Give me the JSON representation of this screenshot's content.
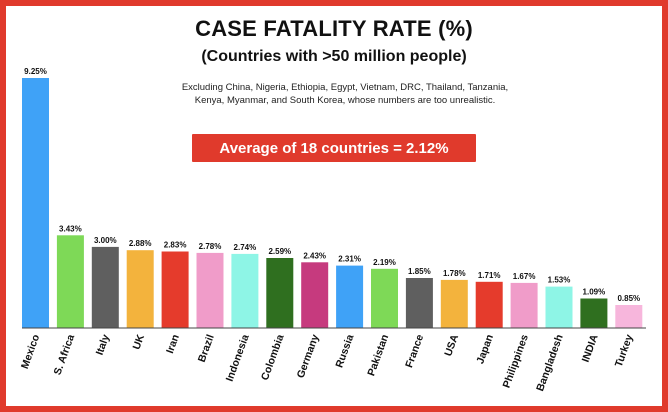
{
  "header": {
    "title": "CASE FATALITY RATE (%)",
    "subtitle": "(Countries with >50 million people)",
    "note": "Excluding China, Nigeria, Ethiopia, Egypt, Vietnam, DRC, Thailand, Tanzania, Kenya, Myanmar, and South Korea, whose numbers are too unrealistic.",
    "average_banner": "Average of 18 countries = 2.12%"
  },
  "colors": {
    "frame": "#e03a2c",
    "banner": "#e03a2c"
  },
  "chart_data": {
    "type": "bar",
    "title": "CASE FATALITY RATE (%)",
    "subtitle": "(Countries with >50 million people)",
    "xlabel": "",
    "ylabel": "",
    "ylim": [
      0,
      9.25
    ],
    "grid": false,
    "categories": [
      "Mexico",
      "S. Africa",
      "Italy",
      "UK",
      "Iran",
      "Brazil",
      "Indonesia",
      "Colombia",
      "Germany",
      "Russia",
      "Pakistan",
      "France",
      "USA",
      "Japan",
      "Philippines",
      "Bangladesh",
      "INDIA",
      "Turkey"
    ],
    "values": [
      9.25,
      3.43,
      3.0,
      2.88,
      2.83,
      2.78,
      2.74,
      2.59,
      2.43,
      2.31,
      2.19,
      1.85,
      1.78,
      1.71,
      1.67,
      1.53,
      1.09,
      0.85
    ],
    "value_labels": [
      "9.25%",
      "3.43%",
      "3.00%",
      "2.88%",
      "2.83%",
      "2.78%",
      "2.74%",
      "2.59%",
      "2.43%",
      "2.31%",
      "2.19%",
      "1.85%",
      "1.78%",
      "1.71%",
      "1.67%",
      "1.53%",
      "1.09%",
      "0.85%"
    ],
    "bar_colors": [
      "#3fa2f7",
      "#7ed957",
      "#5f5f5f",
      "#f3b33d",
      "#e53b2c",
      "#f09cc9",
      "#8ef5e6",
      "#2f6f1f",
      "#c63a7e",
      "#3fa2f7",
      "#7ed957",
      "#5f5f5f",
      "#f3b33d",
      "#e53b2c",
      "#f09cc9",
      "#8ef5e6",
      "#2f6f1f",
      "#f7b6dc"
    ]
  }
}
